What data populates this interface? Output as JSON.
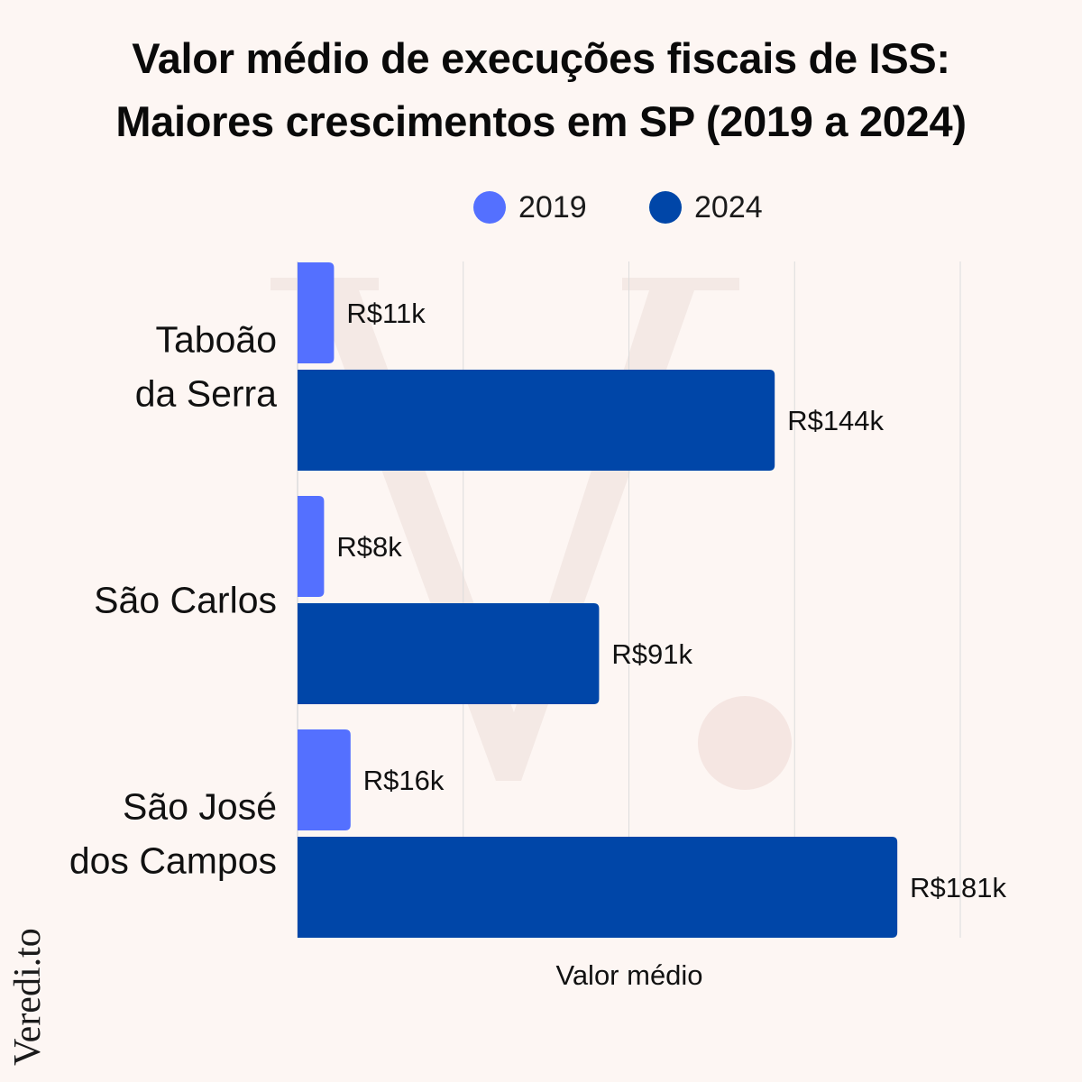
{
  "chart_data": {
    "type": "bar",
    "orientation": "horizontal",
    "title_lines": [
      "Valor médio de execuções fiscais de ISS:",
      "Maiores crescimentos em SP (2019 a 2024)"
    ],
    "categories": [
      [
        "Taboão",
        "da Serra"
      ],
      [
        "São Carlos"
      ],
      [
        "São José",
        "dos Campos"
      ]
    ],
    "series": [
      {
        "name": "2019",
        "color": "#5470ff",
        "values": [
          11,
          8,
          16
        ],
        "labels": [
          "R$11k",
          "R$8k",
          "R$16k"
        ]
      },
      {
        "name": "2024",
        "color": "#0046a8",
        "values": [
          144,
          91,
          181
        ],
        "labels": [
          "R$144k",
          "R$91k",
          "R$181k"
        ]
      }
    ],
    "xlabel": "Valor médio",
    "xlim": [
      0,
      200
    ],
    "grid": true,
    "legend_position": "top"
  },
  "brand": {
    "name": "Veredi.to",
    "color": "#1a1a1a",
    "accent_color": "#d62828"
  },
  "colors": {
    "background": "#fdf6f3",
    "grid": "#dcdcdc"
  }
}
